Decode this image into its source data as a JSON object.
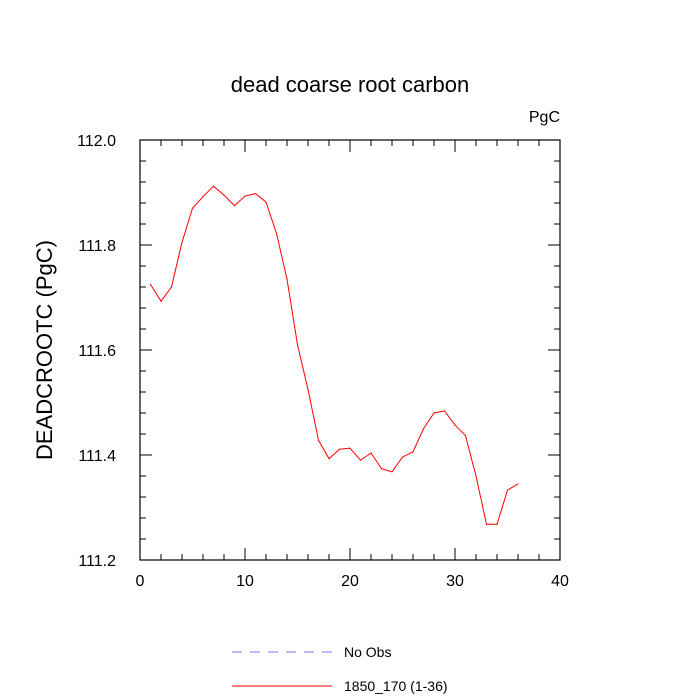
{
  "chart_data": {
    "type": "line",
    "title": "dead coarse root carbon",
    "units": "PgC",
    "ylabel": "DEADCROOTC  (PgC)",
    "xlabel": "",
    "xlim": [
      0,
      40
    ],
    "ylim": [
      111.2,
      112.0
    ],
    "xticks": [
      0,
      10,
      20,
      30,
      40
    ],
    "xtick_labels": [
      "0",
      "10",
      "20",
      "30",
      "40"
    ],
    "yticks": [
      111.2,
      111.4,
      111.6,
      111.8,
      112.0
    ],
    "ytick_labels": [
      "111.2",
      "111.4",
      "111.6",
      "111.8",
      "112.0"
    ],
    "grid": false,
    "legend_position": "bottom",
    "series": [
      {
        "name": "No Obs",
        "color": "#7777ee",
        "dashed": true,
        "x": [],
        "y": []
      },
      {
        "name": "1850_170 (1-36)",
        "color": "#ff0000",
        "dashed": false,
        "x": [
          1,
          2,
          3,
          4,
          5,
          6,
          7,
          8,
          9,
          10,
          11,
          12,
          13,
          14,
          15,
          16,
          17,
          18,
          19,
          20,
          21,
          22,
          23,
          24,
          25,
          26,
          27,
          28,
          29,
          30,
          31,
          32,
          33,
          34,
          35,
          36
        ],
        "y": [
          111.725,
          111.693,
          111.72,
          111.805,
          111.87,
          111.892,
          111.912,
          111.895,
          111.875,
          111.893,
          111.898,
          111.882,
          111.822,
          111.735,
          111.61,
          111.525,
          111.428,
          111.393,
          111.411,
          111.413,
          111.39,
          111.404,
          111.374,
          111.368,
          111.396,
          111.406,
          111.45,
          111.48,
          111.484,
          111.457,
          111.437,
          111.36,
          111.268,
          111.268,
          111.333,
          111.345
        ]
      }
    ]
  }
}
